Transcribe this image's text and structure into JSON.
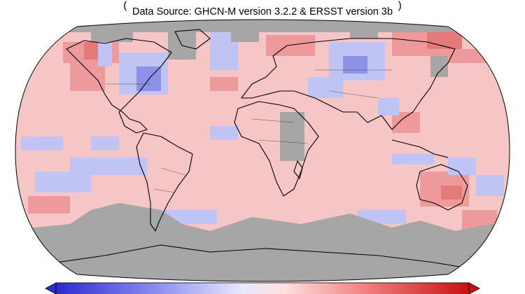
{
  "map": {
    "source": "Data Source: GHCN-M version 3.2.2 & ERSST version 3b"
  }
}
